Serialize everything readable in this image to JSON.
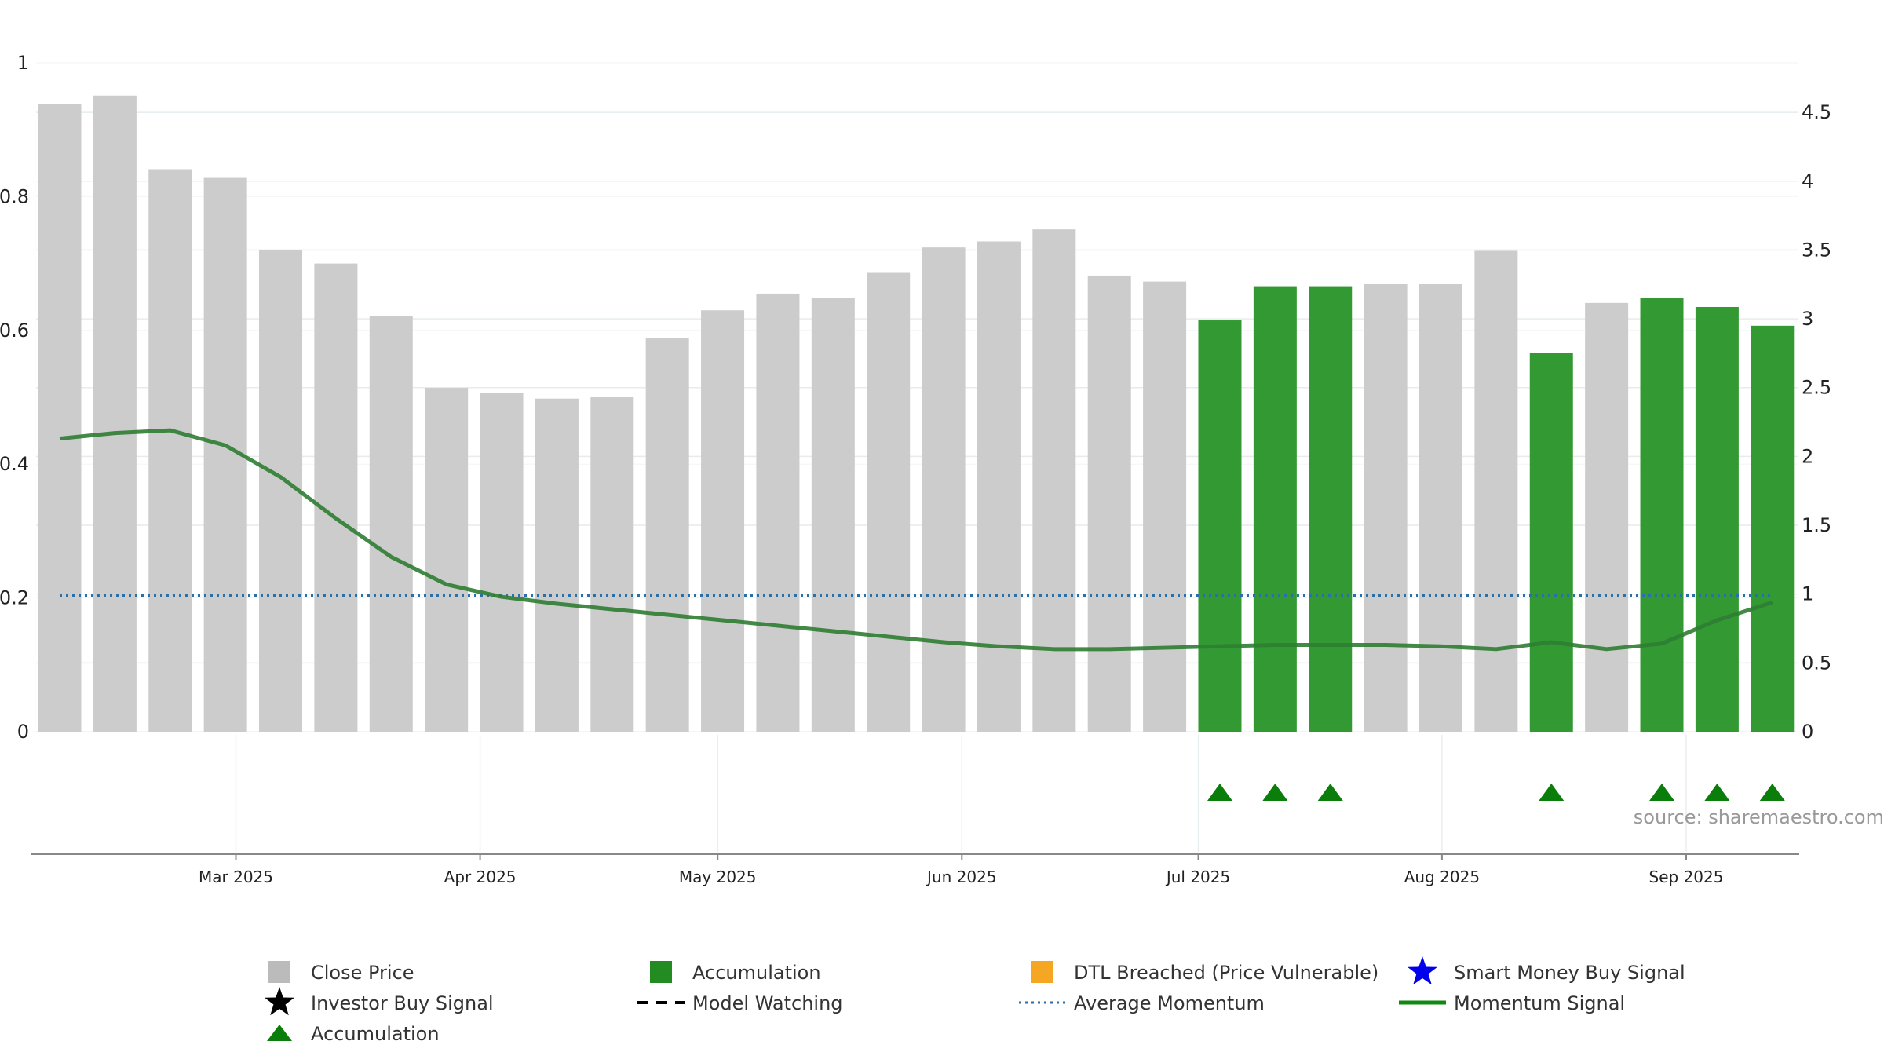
{
  "chart_data": {
    "type": "bar",
    "source": "source: sharemaestro.com",
    "colors": {
      "close_price": "#cccccc",
      "accumulation": "#339933",
      "momentum": "#2e7d32",
      "avg_momentum": "#2b6fa8",
      "marker": "#0a7d0a"
    },
    "left_axis": {
      "range": [
        0,
        1
      ],
      "ticks": [
        "0",
        "0.2",
        "0.4",
        "0.6",
        "0.8",
        "1"
      ],
      "tick_values": [
        0,
        0.2,
        0.4,
        0.6,
        0.8,
        1
      ]
    },
    "right_axis": {
      "range": [
        0,
        4.86
      ],
      "ticks": [
        "0",
        "0.5",
        "1",
        "1.5",
        "2",
        "2.5",
        "3",
        "3.5",
        "4",
        "4.5"
      ],
      "tick_values": [
        0,
        0.5,
        1,
        1.5,
        2,
        2.5,
        3,
        3.5,
        4,
        4.5
      ]
    },
    "x_axis": {
      "ticks": [
        "Mar 2025",
        "Apr 2025",
        "May 2025",
        "Jun 2025",
        "Jul 2025",
        "Aug 2025",
        "Sep 2025"
      ],
      "tick_positions": [
        3.19,
        7.61,
        11.91,
        16.33,
        20.61,
        25.02,
        29.44
      ]
    },
    "bars": [
      {
        "value": 0.938,
        "accumulation": false
      },
      {
        "value": 0.951,
        "accumulation": false
      },
      {
        "value": 0.841,
        "accumulation": false
      },
      {
        "value": 0.828,
        "accumulation": false
      },
      {
        "value": 0.72,
        "accumulation": false
      },
      {
        "value": 0.7,
        "accumulation": false
      },
      {
        "value": 0.622,
        "accumulation": false
      },
      {
        "value": 0.514,
        "accumulation": false
      },
      {
        "value": 0.507,
        "accumulation": false
      },
      {
        "value": 0.498,
        "accumulation": false
      },
      {
        "value": 0.5,
        "accumulation": false
      },
      {
        "value": 0.588,
        "accumulation": false
      },
      {
        "value": 0.63,
        "accumulation": false
      },
      {
        "value": 0.655,
        "accumulation": false
      },
      {
        "value": 0.648,
        "accumulation": false
      },
      {
        "value": 0.686,
        "accumulation": false
      },
      {
        "value": 0.724,
        "accumulation": false
      },
      {
        "value": 0.733,
        "accumulation": false
      },
      {
        "value": 0.751,
        "accumulation": false
      },
      {
        "value": 0.682,
        "accumulation": false
      },
      {
        "value": 0.673,
        "accumulation": false
      },
      {
        "value": 0.615,
        "accumulation": true
      },
      {
        "value": 0.666,
        "accumulation": true
      },
      {
        "value": 0.666,
        "accumulation": true
      },
      {
        "value": 0.669,
        "accumulation": false
      },
      {
        "value": 0.669,
        "accumulation": false
      },
      {
        "value": 0.719,
        "accumulation": false
      },
      {
        "value": 0.566,
        "accumulation": true
      },
      {
        "value": 0.641,
        "accumulation": false
      },
      {
        "value": 0.649,
        "accumulation": true
      },
      {
        "value": 0.635,
        "accumulation": true
      },
      {
        "value": 0.607,
        "accumulation": true
      }
    ],
    "momentum_signal": [
      2.13,
      2.17,
      2.19,
      2.08,
      1.85,
      1.55,
      1.27,
      1.07,
      0.98,
      0.93,
      0.89,
      0.85,
      0.81,
      0.77,
      0.73,
      0.69,
      0.65,
      0.62,
      0.6,
      0.6,
      0.61,
      0.62,
      0.63,
      0.63,
      0.63,
      0.62,
      0.6,
      0.65,
      0.6,
      0.64,
      0.81,
      0.94
    ],
    "average_momentum": 0.99,
    "accumulation_markers": [
      21,
      22,
      23,
      27,
      29,
      30,
      31
    ],
    "legend": [
      {
        "label": "Close Price",
        "symbol": "square",
        "color": "#bbbbbb"
      },
      {
        "label": "Accumulation",
        "symbol": "square",
        "color": "#228b22"
      },
      {
        "label": "DTL Breached (Price Vulnerable)",
        "symbol": "square",
        "color": "#f5a623"
      },
      {
        "label": "Smart Money Buy Signal",
        "symbol": "star",
        "color": "#0000ee"
      },
      {
        "label": "Investor Buy Signal",
        "symbol": "star",
        "color": "#000000"
      },
      {
        "label": "Model Watching",
        "symbol": "dash",
        "color": "#000000"
      },
      {
        "label": "Average Momentum",
        "symbol": "dotted",
        "color": "#2b6fa8"
      },
      {
        "label": "Momentum Signal",
        "symbol": "line",
        "color": "#118811"
      },
      {
        "label": "Accumulation",
        "symbol": "triangle",
        "color": "#0a7d0a"
      }
    ]
  }
}
